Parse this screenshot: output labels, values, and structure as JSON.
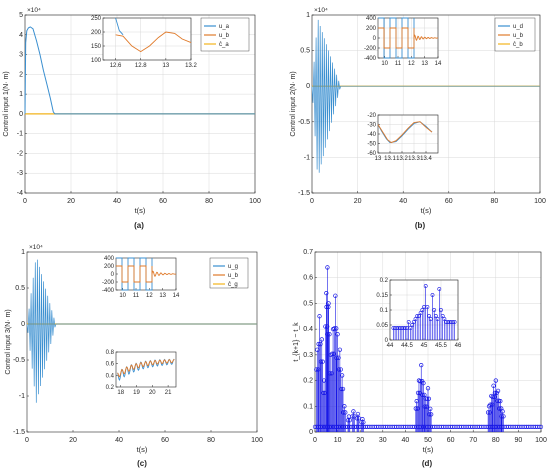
{
  "colors": {
    "blue": "#3a8fd0",
    "orange": "#e07a2a",
    "yellow": "#f2b31c",
    "stem": "#1616e6",
    "axis": "#262626",
    "grid": "#d9d9d9"
  },
  "chart_data": [
    {
      "id": "a",
      "type": "line",
      "caption": "(a)",
      "xlabel": "t(s)",
      "ylabel": "Control input 1(N· m)",
      "exponent": "×10⁴",
      "xlim": [
        0,
        100
      ],
      "ylim": [
        -4,
        5
      ],
      "xticks": [
        "0",
        "20",
        "40",
        "60",
        "80",
        "100"
      ],
      "yticks": [
        "-4",
        "-3",
        "-2",
        "-1",
        "0",
        "1",
        "2",
        "3",
        "4",
        "5"
      ],
      "grid": true,
      "legend": {
        "position": "inset-right",
        "entries": [
          "u_a",
          "u_b",
          "ĉ_a"
        ]
      },
      "series": [
        {
          "color": "blue",
          "x": [
            0,
            0.3,
            0.8,
            1.5,
            2.3,
            3.5,
            5,
            6.5,
            8,
            9.5,
            11,
            12.3,
            13,
            100
          ],
          "y": [
            0,
            3.6,
            4.2,
            4.35,
            4.4,
            4.3,
            3.7,
            3.0,
            2.2,
            1.5,
            0.8,
            0.1,
            0,
            0
          ]
        }
      ],
      "insets": [
        {
          "xlim": [
            12.5,
            13.2
          ],
          "ylim": [
            100,
            250
          ],
          "xticks": [
            "12.6",
            "12.8",
            "13",
            "13.2"
          ],
          "yticks": [
            "100",
            "150",
            "200",
            "250"
          ],
          "series": [
            {
              "color": "blue",
              "x": [
                12.6,
                12.63,
                12.66
              ],
              "y": [
                250,
                205,
                190
              ]
            },
            {
              "color": "orange",
              "x": [
                12.6,
                12.66,
                12.73,
                12.8,
                12.87,
                12.94,
                13.0,
                13.07,
                13.13,
                13.2
              ],
              "y": [
                190,
                185,
                150,
                130,
                150,
                180,
                200,
                195,
                175,
                162
              ]
            }
          ]
        }
      ]
    },
    {
      "id": "b",
      "type": "line",
      "caption": "(b)",
      "xlabel": "t(s)",
      "ylabel": "Control input 2(N· m)",
      "exponent": "×10⁴",
      "xlim": [
        0,
        100
      ],
      "ylim": [
        -1.5,
        1.0
      ],
      "xticks": [
        "0",
        "20",
        "40",
        "60",
        "80",
        "100"
      ],
      "yticks": [
        "-1.5",
        "-1",
        "-0.5",
        "0",
        "0.5",
        "1"
      ],
      "grid": true,
      "legend": {
        "position": "inset-right",
        "entries": [
          "u_d",
          "u_b",
          "ĉ_b"
        ]
      },
      "series": [
        {
          "color": "blue",
          "oscillation": {
            "t_end": 12.5,
            "amp_pos": 0.95,
            "amp_neg": -1.3,
            "period": 0.9,
            "peak_t": 2.5
          }
        }
      ],
      "insets": [
        {
          "xlim": [
            9.5,
            14
          ],
          "ylim": [
            -400,
            400
          ],
          "xticks": [
            "10",
            "11",
            "12",
            "13",
            "14"
          ],
          "yticks": [
            "-400",
            "-200",
            "0",
            "200",
            "400"
          ],
          "series": [
            {
              "color": "blue",
              "square": {
                "t_start": 9.5,
                "t_end": 12.2,
                "period": 0.45,
                "hi": 400,
                "lo": -400
              }
            },
            {
              "color": "orange",
              "square": {
                "t_start": 9.5,
                "t_end": 12.2,
                "period": 0.45,
                "hi": 200,
                "lo": -200
              },
              "decay": {
                "t_start": 12.2,
                "t_end": 14,
                "amp": 60,
                "period": 0.25
              }
            }
          ]
        },
        {
          "xlim": [
            13,
            13.5
          ],
          "ylim": [
            -60,
            -20
          ],
          "xticks": [
            "13",
            "13.1",
            "13.2",
            "13.3",
            "13.4"
          ],
          "yticks": [
            "-60",
            "-50",
            "-40",
            "-30",
            "-20"
          ],
          "series": [
            {
              "color": "blue",
              "x": [
                13.0,
                13.03,
                13.07,
                13.1,
                13.15,
                13.2,
                13.25,
                13.3,
                13.35,
                13.4,
                13.45
              ],
              "y": [
                -30,
                -37,
                -45,
                -49,
                -48,
                -42,
                -35,
                -29,
                -27,
                -32,
                -38
              ]
            },
            {
              "color": "orange",
              "x": [
                13.0,
                13.04,
                13.08,
                13.11,
                13.15,
                13.2,
                13.25,
                13.3,
                13.35,
                13.4,
                13.45
              ],
              "y": [
                -30,
                -38,
                -46,
                -49,
                -47,
                -41,
                -34,
                -28,
                -27,
                -33,
                -38
              ]
            }
          ]
        }
      ]
    },
    {
      "id": "c",
      "type": "line",
      "caption": "(c)",
      "xlabel": "t(s)",
      "ylabel": "Control input 3(N· m)",
      "exponent": "×10⁴",
      "xlim": [
        0,
        100
      ],
      "ylim": [
        -1.5,
        1.0
      ],
      "xticks": [
        "0",
        "20",
        "40",
        "60",
        "80",
        "100"
      ],
      "yticks": [
        "-1.5",
        "-1",
        "-0.5",
        "0",
        "0.5",
        "1"
      ],
      "grid": false,
      "legend": {
        "position": "inset-right",
        "entries": [
          "u_g",
          "u_b",
          "ĉ_g"
        ]
      },
      "series": [
        {
          "color": "blue",
          "oscillation": {
            "t_end": 12.5,
            "amp_pos": 0.95,
            "amp_neg": -1.1,
            "period": 0.9,
            "peak_t": 4
          }
        }
      ],
      "insets": [
        {
          "xlim": [
            9.5,
            14
          ],
          "ylim": [
            -400,
            400
          ],
          "xticks": [
            "10",
            "11",
            "12",
            "13",
            "14"
          ],
          "yticks": [
            "-400",
            "-200",
            "0",
            "200",
            "400"
          ],
          "series": [
            {
              "color": "blue",
              "square": {
                "t_start": 9.5,
                "t_end": 12.2,
                "period": 0.45,
                "hi": 400,
                "lo": -400
              }
            },
            {
              "color": "orange",
              "square": {
                "t_start": 9.5,
                "t_end": 12.2,
                "period": 0.45,
                "hi": 200,
                "lo": -200
              },
              "decay": {
                "t_start": 12.2,
                "t_end": 14,
                "amp": 80,
                "period": 0.3
              }
            }
          ]
        },
        {
          "xlim": [
            17.7,
            21.5
          ],
          "ylim": [
            0.2,
            0.8
          ],
          "xticks": [
            "18",
            "19",
            "20",
            "21"
          ],
          "yticks": [
            "0.2",
            "0.4",
            "0.6",
            "0.8"
          ],
          "series": [
            {
              "color": "blue",
              "rising": {
                "start": 0.35,
                "end": 0.65,
                "amp": 0.08,
                "period": 0.3
              }
            },
            {
              "color": "orange",
              "rising": {
                "start": 0.38,
                "end": 0.66,
                "amp": 0.05,
                "period": 0.3
              }
            }
          ]
        }
      ]
    },
    {
      "id": "d",
      "type": "scatter",
      "caption": "(d)",
      "xlabel": "t(s)",
      "ylabel": "t_{k+1} − t_k",
      "xlim": [
        0,
        100
      ],
      "ylim": [
        0,
        0.7
      ],
      "xticks": [
        "0",
        "10",
        "20",
        "30",
        "40",
        "50",
        "60",
        "70",
        "80",
        "90",
        "100"
      ],
      "yticks": [
        "0",
        "0.1",
        "0.2",
        "0.3",
        "0.4",
        "0.5",
        "0.6",
        "0.7"
      ],
      "grid": true,
      "marker": "open-circle-stem",
      "clusters": [
        {
          "t": 1,
          "h": 0.32
        },
        {
          "t": 2,
          "h": 0.45
        },
        {
          "t": 3,
          "h": 0.36
        },
        {
          "t": 4,
          "h": 0.2
        },
        {
          "t": 5,
          "h": 0.54
        },
        {
          "t": 5.5,
          "h": 0.64
        },
        {
          "t": 6,
          "h": 0.5
        },
        {
          "t": 7,
          "h": 0.3
        },
        {
          "t": 8,
          "h": 0.4
        },
        {
          "t": 9,
          "h": 0.53
        },
        {
          "t": 10,
          "h": 0.38
        },
        {
          "t": 11,
          "h": 0.32
        },
        {
          "t": 12,
          "h": 0.22
        },
        {
          "t": 13,
          "h": 0.1
        },
        {
          "t": 15,
          "h": 0.06
        },
        {
          "t": 17,
          "h": 0.08
        },
        {
          "t": 19,
          "h": 0.07
        },
        {
          "t": 21,
          "h": 0.05
        },
        {
          "t": 45,
          "h": 0.12
        },
        {
          "t": 46,
          "h": 0.2
        },
        {
          "t": 47,
          "h": 0.26
        },
        {
          "t": 48,
          "h": 0.19
        },
        {
          "t": 49,
          "h": 0.13
        },
        {
          "t": 50,
          "h": 0.17
        },
        {
          "t": 51,
          "h": 0.09
        },
        {
          "t": 77,
          "h": 0.1
        },
        {
          "t": 78,
          "h": 0.14
        },
        {
          "t": 79,
          "h": 0.18
        },
        {
          "t": 80,
          "h": 0.2
        },
        {
          "t": 81,
          "h": 0.16
        },
        {
          "t": 82,
          "h": 0.12
        },
        {
          "t": 83,
          "h": 0.08
        }
      ],
      "insets": [
        {
          "xlim": [
            44,
            46
          ],
          "ylim": [
            0,
            0.2
          ],
          "xticks": [
            "44",
            "44.5",
            "45",
            "45.5",
            "46"
          ],
          "yticks": [
            "0",
            "0.05",
            "0.1",
            "0.15",
            "0.2"
          ],
          "stems": {
            "x": [
              44.1,
              44.15,
              44.2,
              44.25,
              44.3,
              44.35,
              44.4,
              44.45,
              44.5,
              44.55,
              44.6,
              44.65,
              44.7,
              44.75,
              44.8,
              44.85,
              44.9,
              44.95,
              45.0,
              45.05,
              45.1,
              45.15,
              45.2,
              45.25,
              45.3,
              45.35,
              45.4,
              45.45,
              45.5,
              45.55,
              45.6,
              45.65,
              45.7,
              45.75,
              45.8,
              45.85,
              45.9
            ],
            "y": [
              0.04,
              0.04,
              0.04,
              0.04,
              0.04,
              0.04,
              0.04,
              0.04,
              0.04,
              0.06,
              0.04,
              0.05,
              0.06,
              0.07,
              0.08,
              0.08,
              0.09,
              0.1,
              0.11,
              0.18,
              0.11,
              0.08,
              0.07,
              0.15,
              0.1,
              0.08,
              0.07,
              0.17,
              0.1,
              0.08,
              0.07,
              0.06,
              0.06,
              0.06,
              0.06,
              0.06,
              0.06
            ]
          }
        }
      ]
    }
  ]
}
